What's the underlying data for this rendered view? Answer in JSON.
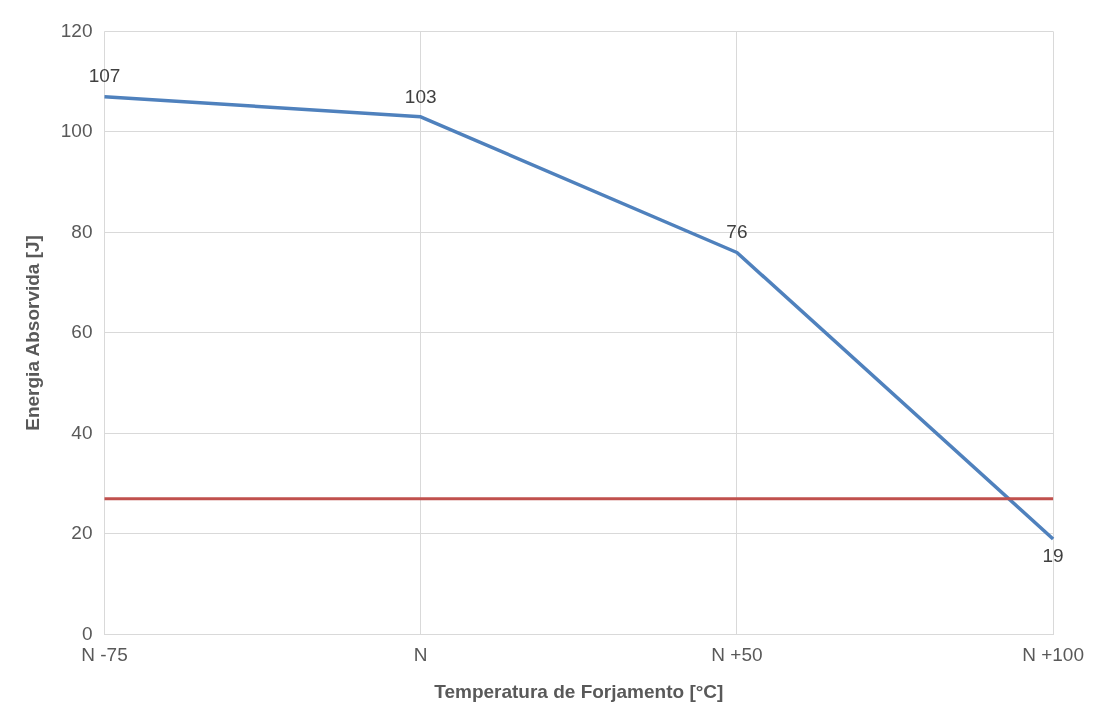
{
  "chart_data": {
    "type": "line",
    "xlabel": "Temperatura de Forjamento [°C]",
    "ylabel": "Energia Absorvida [J]",
    "categories": [
      "N -75",
      "N",
      "N +50",
      "N +100"
    ],
    "series": [
      {
        "color": "#4f81bd",
        "values": [
          107,
          103,
          76,
          19
        ]
      }
    ],
    "ylim": [
      0,
      120
    ],
    "yticks": [
      0,
      20,
      40,
      60,
      80,
      100,
      120
    ],
    "grid": true,
    "data_labels": true,
    "marker": "none",
    "line_style": "solid",
    "ref_lines": [
      {
        "axis": "y",
        "value": 27,
        "color": "#c0504d"
      }
    ]
  }
}
